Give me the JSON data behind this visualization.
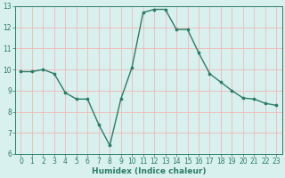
{
  "x": [
    0,
    1,
    2,
    3,
    4,
    5,
    6,
    7,
    8,
    9,
    10,
    11,
    12,
    13,
    14,
    15,
    16,
    17,
    18,
    19,
    20,
    21,
    22,
    23
  ],
  "y": [
    9.9,
    9.9,
    10.0,
    9.8,
    8.9,
    8.6,
    8.6,
    7.4,
    6.4,
    8.6,
    10.1,
    12.7,
    12.85,
    12.85,
    11.9,
    11.9,
    10.8,
    9.8,
    9.4,
    9.0,
    8.65,
    8.6,
    8.4,
    8.3
  ],
  "line_color": "#2a7d65",
  "marker_color": "#2a7d65",
  "bg_color": "#d8f0ee",
  "grid_color": "#f0b8b8",
  "xlabel": "Humidex (Indice chaleur)",
  "ylim": [
    6,
    13
  ],
  "xlim": [
    -0.5,
    23.5
  ],
  "yticks": [
    6,
    7,
    8,
    9,
    10,
    11,
    12,
    13
  ],
  "xticks": [
    0,
    1,
    2,
    3,
    4,
    5,
    6,
    7,
    8,
    9,
    10,
    11,
    12,
    13,
    14,
    15,
    16,
    17,
    18,
    19,
    20,
    21,
    22,
    23
  ],
  "xlabel_fontsize": 6.5,
  "tick_fontsize": 5.5,
  "line_width": 1.0,
  "marker_size": 2.2
}
